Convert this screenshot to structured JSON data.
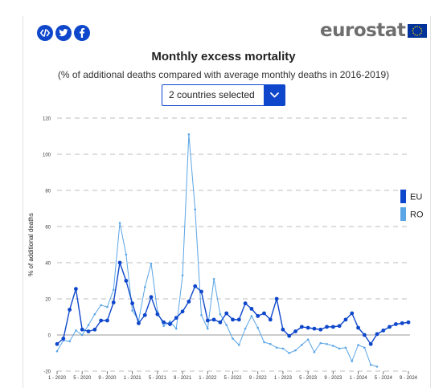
{
  "header": {
    "share_icons": [
      "embed-code-icon",
      "twitter-icon",
      "facebook-icon"
    ],
    "logo_text": "eurostat"
  },
  "controls": {
    "country_selector": "2 countries selected"
  },
  "colors": {
    "brand": "#0e47cb",
    "eu": "#0e47cb",
    "ro": "#5aa5e6",
    "grid": "#bdbdbd"
  },
  "chart_data": {
    "type": "line",
    "title": "Monthly excess mortality",
    "subtitle": "(% of additional deaths compared with average monthly deaths in 2016-2019)",
    "ylabel": "% of additional deaths",
    "xlabel": "",
    "ylim": [
      -20,
      120
    ],
    "yticks": [
      -20,
      0,
      20,
      40,
      60,
      80,
      100,
      120
    ],
    "grid": true,
    "legend_position": "right",
    "x_tick_labels": [
      "1 - 2020",
      "5 - 2020",
      "9 - 2020",
      "1 - 2021",
      "5 - 2021",
      "9 - 2021",
      "1 - 2022",
      "5 - 2022",
      "9 - 2022",
      "1 - 2023",
      "5 - 2023",
      "9 - 2023",
      "1 - 2024",
      "5 - 2024",
      "9 - 2024"
    ],
    "x_start": "1 - 2020",
    "series": [
      {
        "name": "EU",
        "color": "#0e47cb",
        "values": [
          -5,
          -2,
          14,
          25.5,
          3,
          2,
          3,
          8,
          8,
          18,
          40,
          30,
          17.5,
          6.5,
          11,
          21,
          11.5,
          7,
          6,
          9.5,
          13,
          18.5,
          27,
          24,
          8,
          8.5,
          7,
          12,
          8.5,
          8.5,
          17.5,
          14.5,
          10.5,
          12,
          8.5,
          20,
          3,
          -0.5,
          2,
          4.5,
          4,
          3.5,
          3,
          4.5,
          4.5,
          5,
          8.5,
          12,
          4,
          0,
          -5,
          0.5,
          2.5,
          4.5,
          6,
          6.5,
          7
        ]
      },
      {
        "name": "RO",
        "color": "#5aa5e6",
        "values": [
          -9,
          -3,
          -3.5,
          2.5,
          0,
          5.5,
          11.5,
          16.5,
          15.5,
          25,
          62,
          44.5,
          13.5,
          8,
          26.5,
          39.5,
          13,
          5,
          7.5,
          3.5,
          33,
          111,
          69.5,
          11,
          3.5,
          31,
          11.5,
          5.5,
          -2,
          -5.5,
          3.5,
          10.5,
          4,
          -4,
          -5,
          -7,
          -7.5,
          -10,
          -8.5,
          -5.5,
          -2.5,
          -9.5,
          -4.5,
          -5,
          -6,
          -7.5,
          -7,
          -14.5,
          -5.5,
          -7,
          -16.5,
          -17.5
        ]
      }
    ]
  }
}
